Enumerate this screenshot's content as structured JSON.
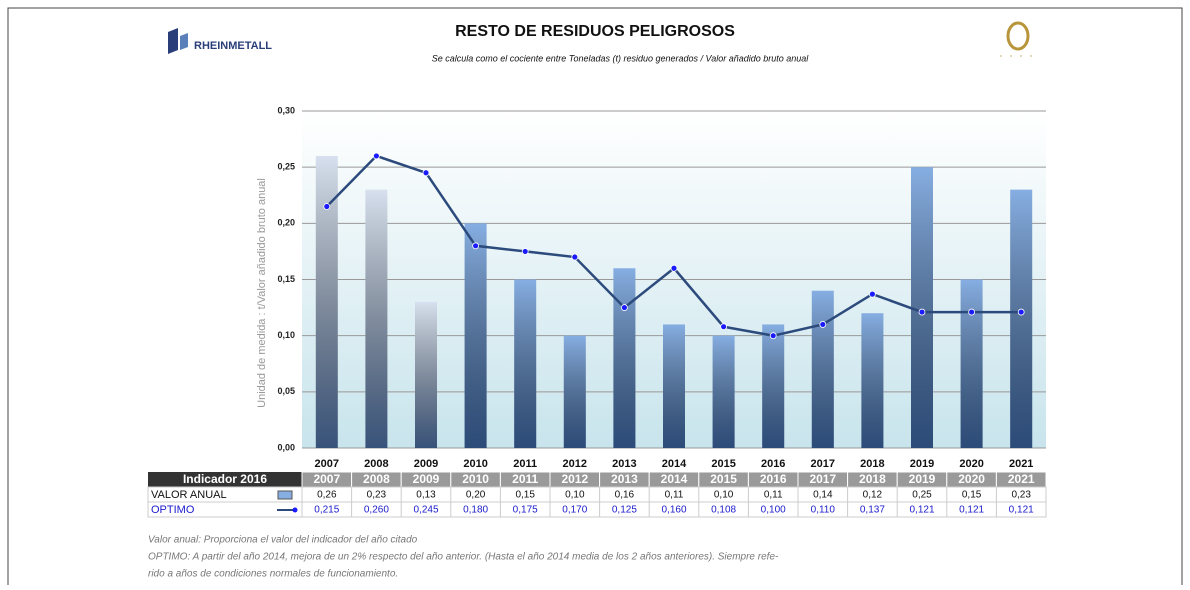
{
  "brand": "RHEINMETALL",
  "chart_data": {
    "type": "bar",
    "title": "RESTO DE RESIDUOS PELIGROSOS",
    "subtitle": "Se calcula como el cociente entre Toneladas (t) residuo generados / Valor añadido bruto anual",
    "ylabel": "Unidad de medida : t/Valor añadido bruto anual",
    "categories": [
      "2007",
      "2008",
      "2009",
      "2010",
      "2011",
      "2012",
      "2013",
      "2014",
      "2015",
      "2016",
      "2017",
      "2018",
      "2019",
      "2020",
      "2021"
    ],
    "series": [
      {
        "name": "VALOR ANUAL",
        "type": "bar",
        "color": "#86aee2",
        "colors": [
          "#d6e0ee",
          "#d6e0ee",
          "#d6e0ee",
          "#86aee2",
          "#86aee2",
          "#86aee2",
          "#86aee2",
          "#86aee2",
          "#86aee2",
          "#86aee2",
          "#86aee2",
          "#86aee2",
          "#86aee2",
          "#86aee2",
          "#86aee2"
        ],
        "values": [
          0.26,
          0.23,
          0.13,
          0.2,
          0.15,
          0.1,
          0.16,
          0.11,
          0.1,
          0.11,
          0.14,
          0.12,
          0.25,
          0.15,
          0.23
        ],
        "value_labels": [
          "0,26",
          "0,23",
          "0,13",
          "0,20",
          "0,15",
          "0,10",
          "0,16",
          "0,11",
          "0,10",
          "0,11",
          "0,14",
          "0,12",
          "0,25",
          "0,15",
          "0,23"
        ]
      },
      {
        "name": "OPTIMO",
        "type": "line",
        "color": "#2c4a7c",
        "marker_color": "#1a1aff",
        "values": [
          0.215,
          0.26,
          0.245,
          0.18,
          0.175,
          0.17,
          0.125,
          0.16,
          0.108,
          0.1,
          0.11,
          0.137,
          0.121,
          0.121,
          0.121
        ],
        "value_labels": [
          "0,215",
          "0,260",
          "0,245",
          "0,180",
          "0,175",
          "0,170",
          "0,125",
          "0,160",
          "0,108",
          "0,100",
          "0,110",
          "0,137",
          "0,121",
          "0,121",
          "0,121"
        ]
      }
    ],
    "ylim": [
      0,
      0.3
    ],
    "yticks": [
      {
        "value": 0,
        "label": "0,00"
      },
      {
        "value": 0.05,
        "label": "0,05"
      },
      {
        "value": 0.1,
        "label": "0,10"
      },
      {
        "value": 0.15,
        "label": "0,15"
      },
      {
        "value": 0.2,
        "label": "0,20"
      },
      {
        "value": 0.25,
        "label": "0,25"
      },
      {
        "value": 0.3,
        "label": "0,30"
      }
    ],
    "grid": true,
    "table_header": "Indicador 2016",
    "notes": [
      "Valor anual: Proporciona el valor del indicador del año citado",
      "OPTIMO: A partir del año 2014, mejora de un 2% respecto del año anterior. (Hasta el año 2014 media de los 2 años anteriores). Siempre refe-",
      "rido a años de condiciones normales de funcionamiento."
    ]
  }
}
